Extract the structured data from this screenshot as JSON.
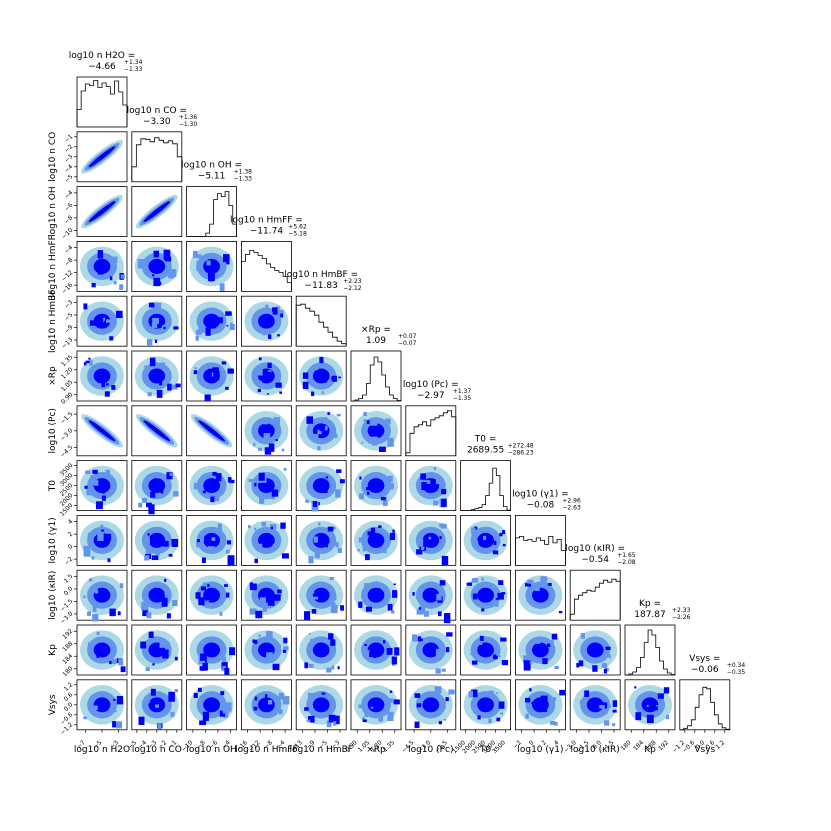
{
  "chart_data": {
    "type": "corner",
    "parameters": [
      {
        "key": "h2o",
        "label": "log10 n H2O",
        "median": "−4.66",
        "plus": "+1.34",
        "minus": "−1.33",
        "ticks": [
          "−7",
          "−5",
          "−3"
        ],
        "hist": [
          0.35,
          0.72,
          0.86,
          0.83,
          0.93,
          0.79,
          0.88,
          0.81,
          0.66,
          0.92,
          0.7,
          0.44
        ]
      },
      {
        "key": "co",
        "label": "log10 n CO",
        "median": "−3.30",
        "plus": "+1.36",
        "minus": "−1.30",
        "ticks": [
          "−5",
          "−4",
          "−3",
          "−2",
          "−1"
        ],
        "hist": [
          0.3,
          0.74,
          0.86,
          0.85,
          0.8,
          0.88,
          0.83,
          0.78,
          0.82,
          0.76,
          0.5
        ]
      },
      {
        "key": "oh",
        "label": "log10 n OH",
        "median": "−5.11",
        "plus": "+1.38",
        "minus": "−1.33",
        "ticks": [
          "−10",
          "−8",
          "−6",
          "−4"
        ],
        "hist": [
          0,
          0,
          0,
          0,
          0,
          0.07,
          0.25,
          0.74,
          0.86,
          0.8,
          0.9,
          0.62,
          0.25
        ]
      },
      {
        "key": "hmff",
        "label": "log10 n HmFF",
        "median": "−11.74",
        "plus": "+5.62",
        "minus": "−5.18",
        "ticks": [
          "−16",
          "−12",
          "−8",
          "−4"
        ],
        "hist": [
          0.6,
          0.74,
          0.82,
          0.78,
          0.72,
          0.66,
          0.55,
          0.48,
          0.42,
          0.38,
          0.3,
          0.18
        ]
      },
      {
        "key": "hmbf",
        "label": "log10 n HmBF",
        "median": "−11.83",
        "plus": "+2.23",
        "minus": "−2.12",
        "ticks": [
          "−13",
          "−9",
          "−5",
          "−3"
        ],
        "hist": [
          0.82,
          0.84,
          0.76,
          0.7,
          0.62,
          0.48,
          0.38,
          0.28,
          0.18,
          0.1,
          0.05
        ]
      },
      {
        "key": "rp",
        "label": "×Rp",
        "median": "1.09",
        "plus": "+0.07",
        "minus": "−0.07",
        "ticks": [
          "0.90",
          "1.05",
          "1.20",
          "1.35"
        ],
        "hist": [
          0,
          0.02,
          0.05,
          0.12,
          0.35,
          0.72,
          0.88,
          0.78,
          0.52,
          0.28,
          0.12,
          0.05,
          0.01
        ]
      },
      {
        "key": "pc",
        "label": "log10 (Pc)",
        "median": "−2.97",
        "plus": "+1.37",
        "minus": "−1.35",
        "ticks": [
          "−4.5",
          "−3.0",
          "−1.5"
        ],
        "hist": [
          0.06,
          0.45,
          0.58,
          0.62,
          0.68,
          0.6,
          0.72,
          0.76,
          0.8,
          0.86,
          0.9,
          0.78
        ]
      },
      {
        "key": "t0",
        "label": "T0",
        "median": "2689.55",
        "plus": "+272.48",
        "minus": "−286.23",
        "ticks": [
          "1500",
          "2000",
          "2500",
          "3000",
          "3500"
        ],
        "hist": [
          0,
          0,
          0,
          0.02,
          0.04,
          0.06,
          0.12,
          0.3,
          0.55,
          0.85,
          0.7,
          0.3,
          0.08,
          0.01
        ]
      },
      {
        "key": "g1",
        "label": "log10 (γ1)",
        "median": "−0.08",
        "plus": "+2.96",
        "minus": "−2.63",
        "ticks": [
          "−2",
          "0",
          "2",
          "4"
        ],
        "hist": [
          0.55,
          0.58,
          0.5,
          0.52,
          0.48,
          0.55,
          0.5,
          0.42,
          0.58,
          0.45,
          0.52,
          0.3
        ]
      },
      {
        "key": "kir",
        "label": "log10 (κIR)",
        "median": "−0.54",
        "plus": "+1.65",
        "minus": "−2.08",
        "ticks": [
          "−3.0",
          "−1.5",
          "0.0",
          "1.5"
        ],
        "hist": [
          0.12,
          0.42,
          0.5,
          0.55,
          0.6,
          0.58,
          0.66,
          0.74,
          0.8,
          0.76,
          0.82,
          0.78
        ]
      },
      {
        "key": "kp",
        "label": "Kp",
        "median": "187.87",
        "plus": "+2.33",
        "minus": "−2.26",
        "ticks": [
          "180",
          "184",
          "188",
          "192"
        ],
        "hist": [
          0,
          0.02,
          0.06,
          0.15,
          0.35,
          0.65,
          0.9,
          0.8,
          0.55,
          0.28,
          0.12,
          0.04,
          0.01
        ]
      },
      {
        "key": "vsys",
        "label": "Vsys",
        "median": "−0.06",
        "plus": "+0.34",
        "minus": "−0.35",
        "ticks": [
          "−1.2",
          "−0.6",
          "0.0",
          "0.6",
          "1.2"
        ],
        "hist": [
          0,
          0.03,
          0.08,
          0.2,
          0.45,
          0.7,
          0.85,
          0.82,
          0.55,
          0.3,
          0.12,
          0.04,
          0.01
        ]
      }
    ],
    "contour_colors": [
      "#add8e6",
      "#6495ed",
      "#0000ff"
    ],
    "hist_color": "#000000"
  }
}
